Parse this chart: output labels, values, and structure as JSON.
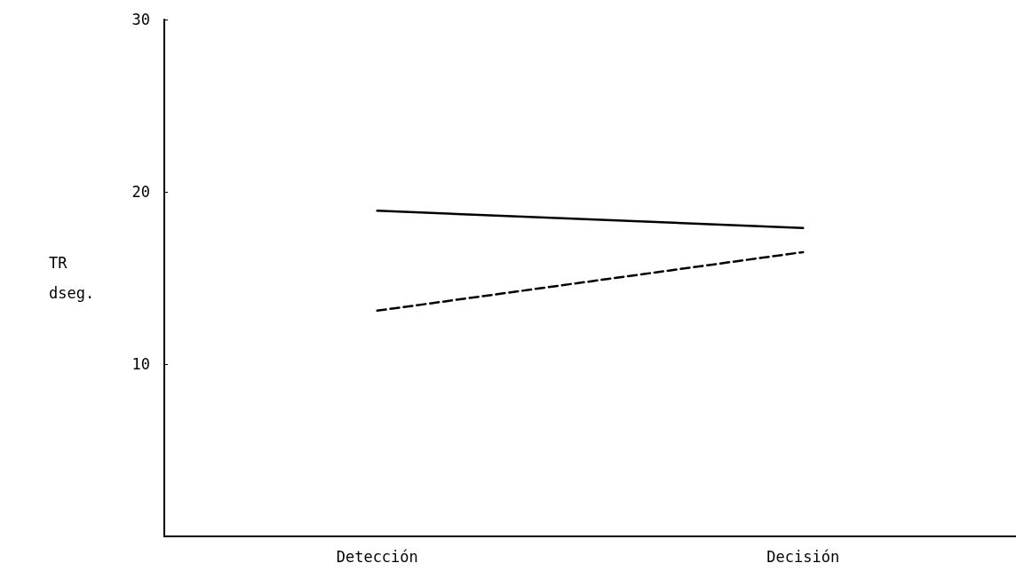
{
  "chart_data": {
    "type": "line",
    "ylabel": "TR\ndseg.",
    "categories": [
      "Detección",
      "Decisión"
    ],
    "series": [
      {
        "color": "#000000",
        "values": [
          18.9,
          17.9
        ],
        "line_style": "solid"
      },
      {
        "color": "#000000",
        "values": [
          13.1,
          16.5
        ],
        "line_style": "dashed"
      }
    ],
    "ylim": [
      0,
      30
    ],
    "yticks": [
      10,
      20,
      30
    ],
    "grid": false,
    "marker": "none"
  }
}
